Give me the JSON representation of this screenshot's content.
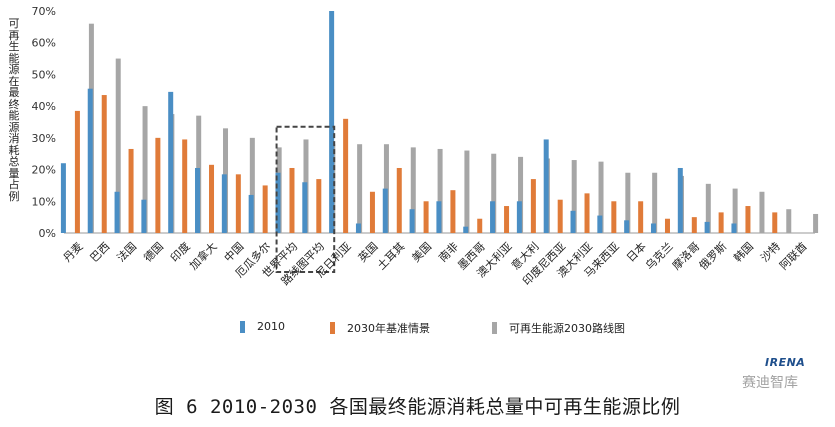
{
  "chart_data": {
    "type": "bar",
    "ylabel": "可再生能源在最终能源消耗总量占例",
    "ylim": [
      0,
      70
    ],
    "yticks": [
      "0%",
      "10%",
      "20%",
      "30%",
      "40%",
      "50%",
      "60%",
      "70%"
    ],
    "categories": [
      "丹麦",
      "巴西",
      "法国",
      "德国",
      "印度",
      "加拿大",
      "中国",
      "厄瓜多尔",
      "世界平均",
      "路线图平均",
      "尼日利亚",
      "英国",
      "土耳其",
      "美国",
      "南非",
      "墨西哥",
      "澳大利亚",
      "意大利",
      "印度尼西亚",
      "澳大利亚",
      "马来西亚",
      "日本",
      "乌克兰",
      "摩洛哥",
      "俄罗斯",
      "韩国",
      "沙特",
      "阿联酋"
    ],
    "series": [
      {
        "name": "2010",
        "color": "#4a8ec4",
        "values": [
          22,
          45.5,
          13,
          10.5,
          44.5,
          20.5,
          18.5,
          12,
          19,
          16,
          70,
          3,
          14,
          7.5,
          10,
          2,
          10,
          10,
          29.5,
          7,
          5.5,
          4,
          3,
          20.5,
          3.5,
          3,
          0,
          0
        ]
      },
      {
        "name": "2030年基准情景",
        "color": "#e07b39",
        "values": [
          38.5,
          43.5,
          26.5,
          30,
          29.5,
          21.5,
          18.5,
          15,
          20.5,
          17,
          36,
          13,
          20.5,
          10,
          13.5,
          4.5,
          8.5,
          17,
          10.5,
          12.5,
          10,
          10,
          4.5,
          5,
          6.5,
          8.5,
          6.5,
          0
        ]
      },
      {
        "name": "可再生能源2030路线图",
        "color": "#a6a6a6",
        "values": [
          66,
          55,
          40,
          37.5,
          37,
          33,
          30,
          27,
          29.5,
          28,
          28,
          28,
          27,
          26.5,
          26,
          25,
          24,
          23.5,
          23,
          22.5,
          19,
          19,
          18,
          15.5,
          14,
          13,
          7.5,
          6
        ]
      }
    ],
    "highlight_categories": [
      "世界平均",
      "路线图平均"
    ],
    "legend": "bottom"
  },
  "source_label": "IRENA",
  "caption": "图 6   2010-2030 各国最终能源消耗总量中可再生能源比例",
  "watermark": "赛迪智库"
}
